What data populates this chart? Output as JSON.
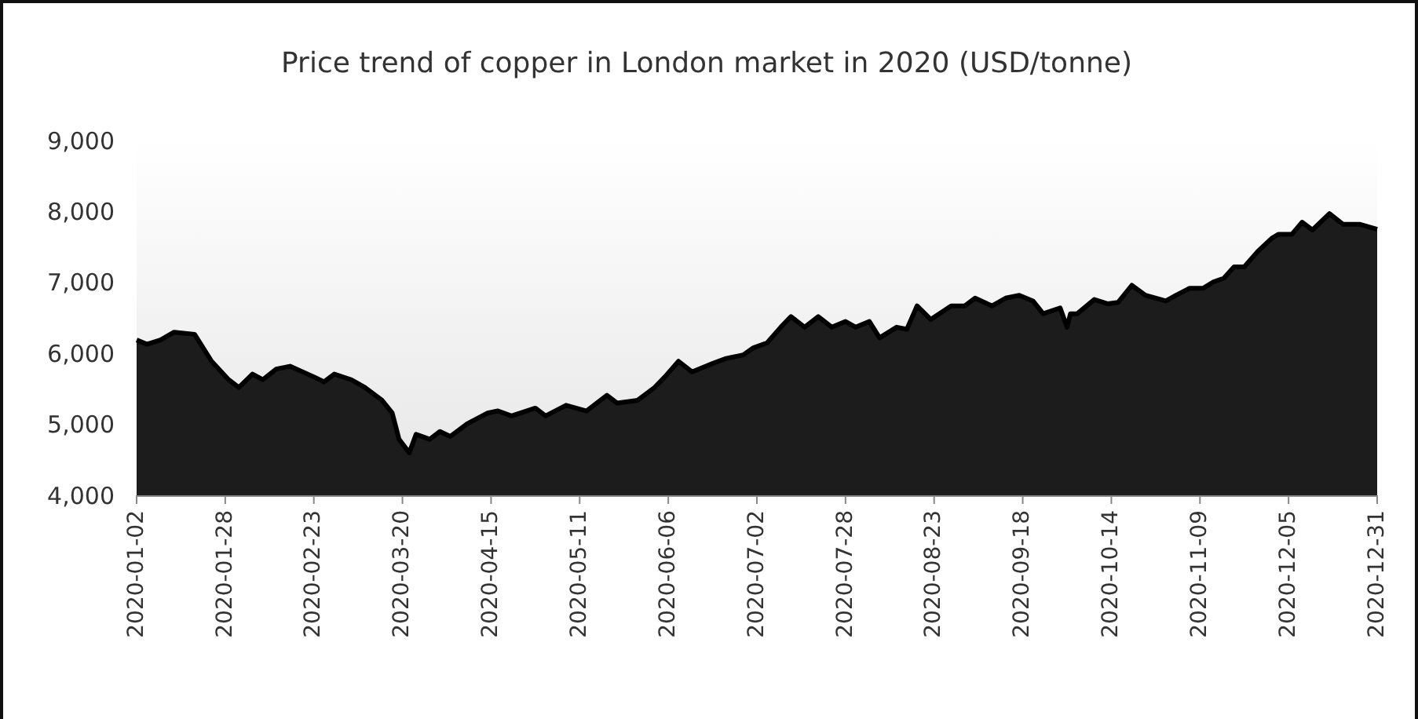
{
  "chart_data": {
    "type": "area",
    "title": "Price trend of copper in London market in 2020 (USD/tonne)",
    "x": [
      "2020-01-02",
      "2020-01-05",
      "2020-01-09",
      "2020-01-13",
      "2020-01-19",
      "2020-01-24",
      "2020-01-29",
      "2020-02-01",
      "2020-02-05",
      "2020-02-08",
      "2020-02-12",
      "2020-02-16",
      "2020-02-23",
      "2020-02-26",
      "2020-02-29",
      "2020-03-05",
      "2020-03-09",
      "2020-03-14",
      "2020-03-17",
      "2020-03-19",
      "2020-03-22",
      "2020-03-24",
      "2020-03-28",
      "2020-03-31",
      "2020-04-03",
      "2020-04-08",
      "2020-04-14",
      "2020-04-17",
      "2020-04-21",
      "2020-04-28",
      "2020-05-01",
      "2020-05-07",
      "2020-05-13",
      "2020-05-19",
      "2020-05-22",
      "2020-05-28",
      "2020-06-02",
      "2020-06-05",
      "2020-06-09",
      "2020-06-13",
      "2020-06-19",
      "2020-06-23",
      "2020-06-28",
      "2020-07-01",
      "2020-07-05",
      "2020-07-09",
      "2020-07-12",
      "2020-07-16",
      "2020-07-20",
      "2020-07-24",
      "2020-07-28",
      "2020-07-31",
      "2020-08-04",
      "2020-08-07",
      "2020-08-12",
      "2020-08-15",
      "2020-08-18",
      "2020-08-22",
      "2020-08-28",
      "2020-09-01",
      "2020-09-04",
      "2020-09-09",
      "2020-09-13",
      "2020-09-17",
      "2020-09-21",
      "2020-09-24",
      "2020-09-29",
      "2020-10-01",
      "2020-10-02",
      "2020-10-04",
      "2020-10-09",
      "2020-10-13",
      "2020-10-16",
      "2020-10-20",
      "2020-10-24",
      "2020-10-30",
      "2020-11-02",
      "2020-11-06",
      "2020-11-10",
      "2020-11-13",
      "2020-11-16",
      "2020-11-19",
      "2020-11-22",
      "2020-11-26",
      "2020-11-30",
      "2020-12-02",
      "2020-12-06",
      "2020-12-09",
      "2020-12-12",
      "2020-12-17",
      "2020-12-21",
      "2020-12-26",
      "2020-12-31"
    ],
    "series": [
      {
        "color": "#1c1c1c",
        "values": [
          6200,
          6140,
          6200,
          6310,
          6280,
          5900,
          5640,
          5530,
          5720,
          5640,
          5790,
          5830,
          5680,
          5610,
          5720,
          5640,
          5530,
          5350,
          5170,
          4800,
          4610,
          4870,
          4800,
          4910,
          4840,
          5020,
          5170,
          5200,
          5130,
          5240,
          5130,
          5280,
          5200,
          5420,
          5310,
          5350,
          5530,
          5680,
          5900,
          5750,
          5870,
          5940,
          5990,
          6090,
          6160,
          6380,
          6530,
          6380,
          6530,
          6380,
          6460,
          6380,
          6460,
          6230,
          6380,
          6350,
          6680,
          6490,
          6680,
          6680,
          6790,
          6680,
          6790,
          6830,
          6750,
          6570,
          6650,
          6380,
          6570,
          6570,
          6770,
          6710,
          6730,
          6970,
          6830,
          6750,
          6830,
          6930,
          6930,
          7020,
          7070,
          7230,
          7230,
          7450,
          7630,
          7690,
          7690,
          7860,
          7750,
          7980,
          7830,
          7830,
          7760
        ]
      }
    ],
    "xlim": [
      "2020-01-02",
      "2020-12-31"
    ],
    "xticks": [
      "2020-01-02",
      "2020-01-28",
      "2020-02-23",
      "2020-03-20",
      "2020-04-15",
      "2020-05-11",
      "2020-06-06",
      "2020-07-02",
      "2020-07-28",
      "2020-08-23",
      "2020-09-18",
      "2020-10-14",
      "2020-11-09",
      "2020-12-05",
      "2020-12-31"
    ],
    "ylim": [
      4000,
      9000
    ],
    "yticks": [
      {
        "value": 4000,
        "label": "4,000"
      },
      {
        "value": 5000,
        "label": "5,000"
      },
      {
        "value": 6000,
        "label": "6,000"
      },
      {
        "value": 7000,
        "label": "7,000"
      },
      {
        "value": 8000,
        "label": "8,000"
      },
      {
        "value": 9000,
        "label": "9,000"
      }
    ],
    "grid": false
  }
}
